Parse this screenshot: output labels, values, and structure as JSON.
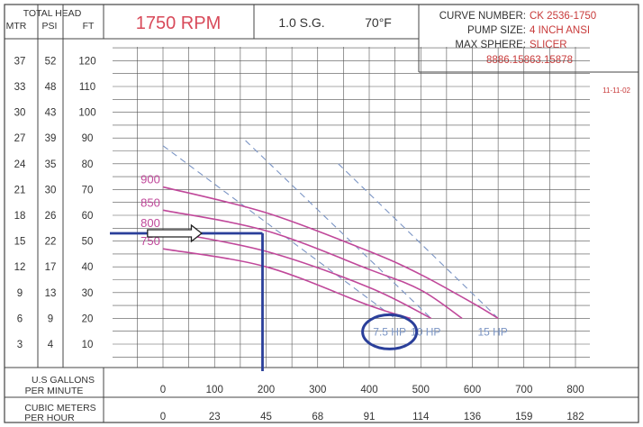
{
  "header": {
    "col_header_top": "TOTAL HEAD",
    "col_header_units": [
      "MTR",
      "PSI",
      "FT"
    ],
    "rpm": "1750 RPM",
    "sg": "1.0 S.G.",
    "temp": "70°F",
    "curve_number_label": "CURVE NUMBER:",
    "curve_number_value": "CK 2536-1750",
    "pump_size_label": "PUMP SIZE:",
    "pump_size_value": "4 INCH ANSI",
    "max_sphere_label": "MAX SPHERE:",
    "max_sphere_value": "SLICER",
    "part_number": "8886.15863.15878",
    "date": "11-11-02"
  },
  "left_scale": {
    "mtr": [
      "37",
      "33",
      "30",
      "27",
      "24",
      "21",
      "18",
      "15",
      "12",
      "9",
      "6",
      "3"
    ],
    "psi": [
      "52",
      "48",
      "43",
      "39",
      "35",
      "30",
      "26",
      "22",
      "17",
      "13",
      "9",
      "4"
    ],
    "ft": [
      "120",
      "110",
      "100",
      "90",
      "80",
      "70",
      "60",
      "50",
      "40",
      "30",
      "20",
      "10"
    ]
  },
  "bottom_scale": {
    "gpm_label": [
      "U.S GALLONS",
      "PER MINUTE"
    ],
    "gpm": [
      "0",
      "100",
      "200",
      "300",
      "400",
      "500",
      "600",
      "700",
      "800"
    ],
    "m3h_label": [
      "CUBIC METERS",
      "PER HOUR"
    ],
    "m3h": [
      "0",
      "23",
      "45",
      "68",
      "91",
      "114",
      "136",
      "159",
      "182"
    ]
  },
  "colors": {
    "impeller_curves": "#c0489a",
    "hp_lines": "#7a94c4",
    "marker": "#2a3f9a",
    "rpm_text": "#d84a5a",
    "values_text": "#c83a3a",
    "grid": "#555555"
  },
  "chart_data": {
    "type": "line",
    "xlabel": "U.S GALLONS PER MINUTE",
    "ylabel": "TOTAL HEAD FT",
    "xlim": [
      -50,
      850
    ],
    "ylim": [
      0,
      130
    ],
    "series": [
      {
        "name": "900",
        "x": [
          0,
          200,
          400,
          500,
          600,
          650
        ],
        "y": [
          71,
          61,
          46,
          37,
          26,
          20
        ]
      },
      {
        "name": "850",
        "x": [
          0,
          200,
          400,
          500,
          580
        ],
        "y": [
          62,
          54,
          39,
          31,
          20
        ]
      },
      {
        "name": "800",
        "x": [
          0,
          200,
          400,
          520
        ],
        "y": [
          54,
          46,
          32,
          20
        ]
      },
      {
        "name": "750",
        "x": [
          0,
          200,
          400,
          480
        ],
        "y": [
          47,
          40,
          25,
          20
        ]
      }
    ],
    "hp_lines": [
      {
        "name": "7.5 HP",
        "x": [
          0,
          450
        ],
        "y": [
          87,
          20
        ]
      },
      {
        "name": "10 HP",
        "x": [
          160,
          520
        ],
        "y": [
          89,
          20
        ]
      },
      {
        "name": "15 HP",
        "x": [
          340,
          650
        ],
        "y": [
          80,
          20
        ]
      }
    ],
    "operating_point": {
      "gpm": 200,
      "head_ft": 53
    }
  }
}
